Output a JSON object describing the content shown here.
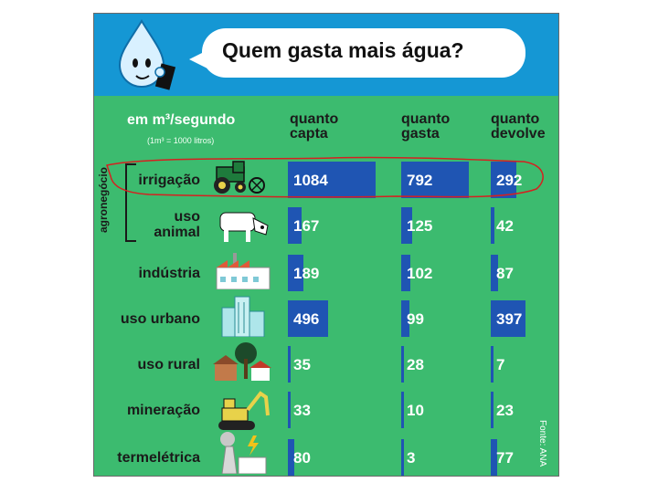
{
  "header": {
    "title": "Quem gasta mais água?"
  },
  "table": {
    "unit_label": "em m³/segundo",
    "unit_note": "(1m³ = 1000 litros)",
    "group_label": "agronegócio",
    "source": "Fonte: ANA",
    "columns": [
      {
        "line1": "quanto",
        "line2": "capta"
      },
      {
        "line1": "quanto",
        "line2": "gasta"
      },
      {
        "line1": "quanto",
        "line2": "devolve"
      }
    ]
  },
  "icons": [
    "water-drop-mascot-icon",
    "tractor-icon",
    "cow-icon",
    "factory-icon",
    "city-buildings-icon",
    "farm-house-icon",
    "excavator-icon",
    "power-plant-icon"
  ],
  "colors": {
    "sky": "#1597d4",
    "field": "#3cbb6f",
    "bar": "#1f55b3",
    "annotation": "#d62020"
  },
  "chart_data": {
    "type": "bar",
    "title": "Quem gasta mais água?",
    "unit": "em m³/segundo",
    "categories": [
      "irrigação",
      "uso animal",
      "indústria",
      "uso urbano",
      "uso rural",
      "mineração",
      "termelétrica"
    ],
    "series": [
      {
        "name": "quanto capta",
        "values": [
          1084,
          167,
          189,
          496,
          35,
          33,
          80
        ]
      },
      {
        "name": "quanto gasta",
        "values": [
          792,
          125,
          102,
          99,
          28,
          10,
          3
        ]
      },
      {
        "name": "quanto devolve",
        "values": [
          292,
          42,
          87,
          397,
          7,
          23,
          77
        ]
      }
    ],
    "label_lines": [
      [
        "irrigação"
      ],
      [
        "uso",
        "animal"
      ],
      [
        "indústria"
      ],
      [
        "uso urbano"
      ],
      [
        "uso rural"
      ],
      [
        "mineração"
      ],
      [
        "termelétrica"
      ]
    ],
    "highlighted_row": "irrigação"
  }
}
